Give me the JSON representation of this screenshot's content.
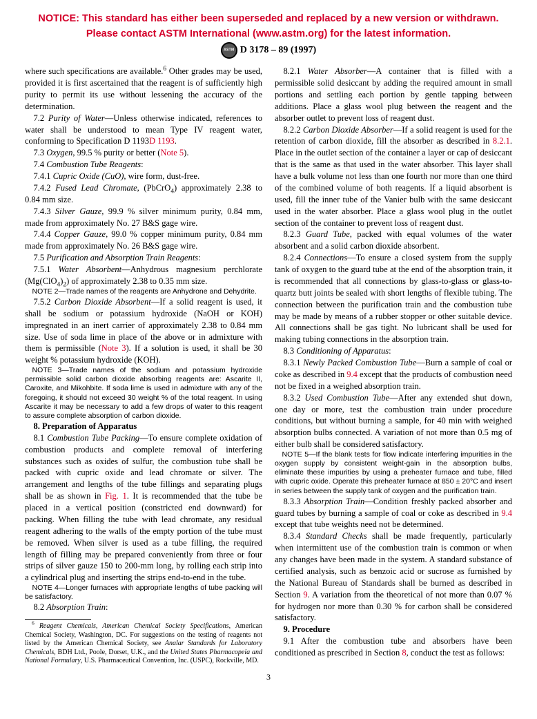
{
  "notice": {
    "line1": "NOTICE: This standard has either been superseded and replaced by a new version or withdrawn.",
    "line2": "Please contact ASTM International (www.astm.org) for the latest information."
  },
  "header": {
    "designation": "D 3178 – 89  (1997)"
  },
  "col1": {
    "p1a": "where such specifications are available.",
    "sup6": "6",
    "p1b": " Other grades may be used, provided it is first ascertained that the reagent is of sufficiently high purity to permit its use without lessening the accuracy of the determination.",
    "p72a": "7.2 ",
    "p72i": "Purity of Water",
    "p72b": "—Unless otherwise indicated, references to water shall be understood to mean Type IV reagent water, conforming to Specification D 1193",
    "p72link": "D 1193",
    "p72c": ".",
    "p73a": "7.3 ",
    "p73i": "Oxygen",
    "p73b": ", 99.5 % purity or better (",
    "p73link": "Note 5",
    "p73c": ").",
    "p74a": "7.4 ",
    "p74i": "Combustion Tube Reagents",
    "p74b": ":",
    "p741a": "7.4.1 ",
    "p741i": "Cupric Oxide (CuO)",
    "p741b": ", wire form, dust-free.",
    "p742a": "7.4.2 ",
    "p742i": "Fused Lead Chromate",
    "p742b": ", (PbCrO",
    "p742sub": "4",
    "p742c": ") approximately 2.38 to 0.84 mm size.",
    "p743a": "7.4.3 ",
    "p743i": "Silver Gauze",
    "p743b": ", 99.9 % silver minimum purity, 0.84 mm, made from approximately No. 27 B&S gage wire.",
    "p744a": "7.4.4 ",
    "p744i": "Copper Gauze",
    "p744b": ", 99.0 % copper minimum purity, 0.84 mm made from approximately No. 26 B&S gage wire.",
    "p75a": "7.5 ",
    "p75i": "Purification and Absorption Train Reagents",
    "p75b": ":",
    "p751a": "7.5.1 ",
    "p751i": "Water Absorbent",
    "p751b": "—Anhydrous magnesium perchlorate (Mg(ClO",
    "p751sub1": "4",
    "p751c": ")",
    "p751sub2": "2",
    "p751d": ") of approximately 2.38 to 0.35 mm size.",
    "note2a": "N",
    "note2b": "OTE",
    "note2c": " 2—Trade names of the reagents are Anhydrone and Dehydrite.",
    "p752a": "7.5.2 ",
    "p752i": "Carbon Dioxide Absorbent",
    "p752b": "—If a solid reagent is used, it shall be sodium or potassium hydroxide (NaOH or KOH) impregnated in an inert carrier of approximately 2.38 to 0.84 mm size. Use of soda lime in place of the above or in admixture with them is permissible (",
    "p752link": "Note 3",
    "p752c": "). If a solution is used, it shall be 30 weight % potassium hydroxide (KOH).",
    "note3a": "N",
    "note3b": "OTE",
    "note3c": " 3—Trade names of the sodium and potassium hydroxide permissible solid carbon dioxide absorbing reagents are: Ascarite II, Caroxite, and Mikohbite. If soda lime is used in admixture with any of the foregoing, it should not exceed 30 weight % of the total reagent. In using Ascarite it may be necessary to add a few drops of water to this reagent to assure complete absorption of carbon dioxide.",
    "sec8": "8. Preparation of Apparatus",
    "p81a": "8.1 ",
    "p81i": "Combustion Tube Packing",
    "p81b": "—To ensure complete oxidation of combustion products and complete removal of interfering substances such as oxides of sulfur, the combustion tube shall be packed with cupric oxide and lead chromate or silver. The arrangement and lengths of the tube fillings and separating plugs shall be as shown in ",
    "p81link": "Fig. 1",
    "p81c": ". It is recommended that the tube be placed in a vertical position (constricted end downward) for packing. When filling the tube with lead chromate, any residual reagent adhering to the walls of the empty portion of the tube must be removed. When silver is used as a tube filling, the required length of filling may be prepared conveniently from three or four strips of silver gauze 150 to 200-mm long, by rolling each strip into a cylindrical plug and inserting the strips end-to-end in the tube.",
    "note4a": "N",
    "note4b": "OTE",
    "note4c": " 4—Longer furnaces with appropriate lengths of tube packing will be satisfactory.",
    "p82a": "8.2 ",
    "p82i": "Absorption Train",
    "p82b": ":",
    "fn6a": "6",
    "fn6i1": "Reagent Chemicals, American Chemical Society Specifications",
    "fn6b": ", American Chemical Society, Washington, DC. For suggestions on the testing of reagents not listed by the American Chemical Society, see ",
    "fn6i2": "Analar Standards for Laboratory Chemicals",
    "fn6c": ", BDH Ltd., Poole, Dorset, U.K., and the ",
    "fn6i3": "United States Pharmacopeia and National Formulary",
    "fn6d": ", U.S. Pharmaceutical Convention, Inc. (USPC), Rockville, MD."
  },
  "col2": {
    "p821a": "8.2.1 ",
    "p821i": "Water Absorber",
    "p821b": "—A container that is filled with a permissible solid desiccant by adding the required amount in small portions and settling each portion by gentle tapping between additions. Place a glass wool plug between the reagent and the absorber outlet to prevent loss of reagent dust.",
    "p822a": "8.2.2 ",
    "p822i": "Carbon Dioxide Absorber",
    "p822b": "—If a solid reagent is used for the retention of carbon dioxide, fill the absorber as described in ",
    "p822link": "8.2.1",
    "p822c": ". Place in the outlet section of the container a layer or cap of desiccant that is the same as that used in the water absorber. This layer shall have a bulk volume not less than one fourth nor more than one third of the combined volume of both reagents. If a liquid absorbent is used, fill the inner tube of the Vanier bulb with the same desiccant used in the water absorber. Place a glass wool plug in the outlet section of the container to prevent loss of reagent dust.",
    "p823a": "8.2.3 ",
    "p823i": "Guard Tube",
    "p823b": ", packed with equal volumes of the water absorbent and a solid carbon dioxide absorbent.",
    "p824a": "8.2.4 ",
    "p824i": "Connections",
    "p824b": "—To ensure a closed system from the supply tank of oxygen to the guard tube at the end of the absorption train, it is recommended that all connections by glass-to-glass or glass-to-quartz butt joints be sealed with short lengths of flexible tubing. The connection between the purification train and the combustion tube may be made by means of a rubber stopper or other suitable device. All connections shall be gas tight. No lubricant shall be used for making tubing connections in the absorption train.",
    "p83a": "8.3 ",
    "p83i": "Conditioning of Apparatus",
    "p83b": ":",
    "p831a": "8.3.1 ",
    "p831i": "Newly Packed Combustion Tube",
    "p831b": "—Burn a sample of coal or coke as described in ",
    "p831link": "9.4",
    "p831c": " except that the products of combustion need not be fixed in a weighed absorption train.",
    "p832a": "8.3.2 ",
    "p832i": "Used Combustion Tube",
    "p832b": "—After any extended shut down, one day or more, test the combustion train under procedure conditions, but without burning a sample, for 40 min with weighed absorption bulbs connected. A variation of not more than 0.5 mg of either bulb shall be considered satisfactory.",
    "note5a": "N",
    "note5b": "OTE",
    "note5c": " 5—If the blank tests for flow indicate interfering impurities in the oxygen supply by consistent weight-gain in the absorption bulbs, eliminate these impurities by using a preheater furnace and tube, filled with cupric oxide. Operate this preheater furnace at 850 ± 20°C and insert in series between the supply tank of oxygen and the purification train.",
    "p833a": "8.3.3 ",
    "p833i": "Absorption Train",
    "p833b": "—Condition freshly packed absorber and guard tubes by burning a sample of coal or coke as described in ",
    "p833link": "9.4",
    "p833c": " except that tube weights need not be determined.",
    "p834a": "8.3.4 ",
    "p834i": "Standard Checks",
    "p834b": " shall be made frequently, particularly when intermittent use of the combustion train is common or when any changes have been made in the system. A standard substance of certified analysis, such as benzoic acid or sucrose as furnished by the National Bureau of Standards shall be burned as described in Section ",
    "p834link": "9",
    "p834c": ". A variation from the theoretical of not more than 0.07 % for hydrogen nor more than 0.30 % for carbon shall be considered satisfactory.",
    "sec9": "9. Procedure",
    "p91a": "9.1 After the combustion tube and absorbers have been conditioned as prescribed in Section ",
    "p91link": "8",
    "p91b": ", conduct the test as follows:"
  },
  "pagenum": "3"
}
